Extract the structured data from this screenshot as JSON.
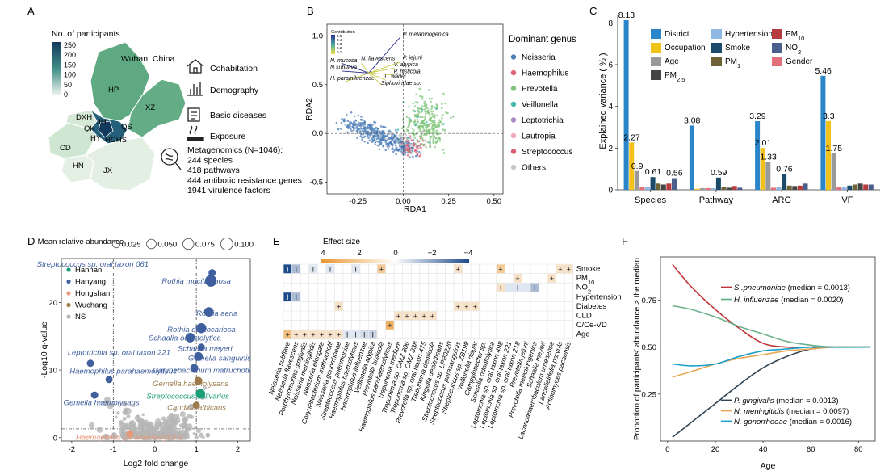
{
  "panels": {
    "a": {
      "letter": "A",
      "legend_title": "No. of participants",
      "legend_ticks": [
        "250",
        "200",
        "150",
        "100",
        "50",
        "0"
      ],
      "city": "Wuhan, China",
      "districts": [
        "HP",
        "XZ",
        "DXH",
        "JH",
        "QK",
        "QS",
        "HY",
        "HCHS",
        "CD",
        "HN",
        "JX"
      ],
      "items": [
        "Cohabitation",
        "Demography",
        "Basic diseases",
        "Exposure"
      ],
      "metagenomics": [
        "Metagenomics (N=1046):",
        "244 species",
        "418 pathways",
        "444 antibotic resistance genes",
        "1941 virulence factors"
      ],
      "colors": {
        "low": "#eef5ee",
        "mid": "#5fa982",
        "high": "#14395e"
      }
    },
    "b": {
      "letter": "B",
      "x_label": "RDA1",
      "y_label": "RDA2",
      "x_ticks": [
        -0.25,
        0.0,
        0.25,
        0.5
      ],
      "x_tick_labels": [
        "-0.25",
        "0.00",
        "0.25",
        "0.50"
      ],
      "y_ticks": [
        -0.5,
        0.0,
        0.5,
        1.0
      ],
      "y_tick_labels": [
        "-0.5",
        "0.0",
        "0.5",
        "1.0"
      ],
      "xlim": [
        -0.42,
        0.55
      ],
      "ylim": [
        -0.62,
        1.12
      ],
      "legend_title": "Dominant genus",
      "genera": [
        "Neisseria",
        "Haemophilus",
        "Prevotella",
        "Veillonella",
        "Leptotrichia",
        "Lautropia",
        "Streptococcus",
        "Others"
      ],
      "genus_colors": [
        "#4f7fb8",
        "#e06377",
        "#7fc47a",
        "#42b8ad",
        "#a48bc2",
        "#f1a9b8",
        "#d95f6e",
        "#c9c9c9"
      ],
      "contribution_title": "Contribution",
      "contribution_ticks": [
        "0.6",
        "0.4",
        "0.3",
        "0.2",
        "0.1"
      ],
      "arrows": [
        {
          "label": "P. melaninogenica",
          "x": -0.02,
          "y": 0.98
        },
        {
          "label": "N. mucosa",
          "x": -0.34,
          "y": 0.72
        },
        {
          "label": "N.subflava",
          "x": -0.34,
          "y": 0.64
        },
        {
          "label": "N. flavescens",
          "x": -0.23,
          "y": 0.72
        },
        {
          "label": "H. parainfluenzae",
          "x": -0.32,
          "y": 0.53
        },
        {
          "label": "V. atypica",
          "x": -0.05,
          "y": 0.67
        },
        {
          "label": "P. histicola",
          "x": -0.05,
          "y": 0.6
        },
        {
          "label": "L. wadei",
          "x": -0.1,
          "y": 0.55
        },
        {
          "label": "Siphoviridae sp.",
          "x": -0.12,
          "y": 0.5
        },
        {
          "label": "P. jejuni",
          "x": -0.02,
          "y": 0.73
        }
      ]
    },
    "c": {
      "letter": "C",
      "y_label": "Explained variance ( % )",
      "y_ticks": [
        0,
        2,
        4,
        6,
        8
      ],
      "ylim": [
        0,
        8.4
      ],
      "categories": [
        "Species",
        "Pathway",
        "ARG",
        "VF"
      ],
      "series": [
        {
          "name": "District",
          "color": "#2a86c9",
          "values": [
            8.13,
            3.08,
            3.29,
            5.46
          ]
        },
        {
          "name": "Occupation",
          "color": "#f2c21b",
          "values": [
            2.27,
            0.05,
            2.01,
            3.3
          ]
        },
        {
          "name": "Age",
          "color": "#9a9a9a",
          "values": [
            0.9,
            0.08,
            1.33,
            1.75
          ]
        },
        {
          "name": "Gender",
          "color": "#e0707a",
          "values": [
            0.12,
            0.08,
            0.1,
            0.12
          ]
        },
        {
          "name": "Hypertension",
          "color": "#8fb8e2",
          "values": [
            0.15,
            0.08,
            0.12,
            0.15
          ]
        },
        {
          "name": "Smoke",
          "color": "#1c4a6a",
          "values": [
            0.61,
            0.59,
            0.76,
            0.2
          ]
        },
        {
          "name": "PM1",
          "color": "#6d6336",
          "values": [
            0.3,
            0.15,
            0.2,
            0.25
          ]
        },
        {
          "name": "PM2.5",
          "color": "#444444",
          "values": [
            0.25,
            0.1,
            0.18,
            0.3
          ]
        },
        {
          "name": "PM10",
          "color": "#b63b3f",
          "values": [
            0.3,
            0.18,
            0.2,
            0.25
          ]
        },
        {
          "name": "NO2",
          "color": "#4a5f8c",
          "values": [
            0.56,
            0.1,
            0.3,
            0.25
          ]
        }
      ],
      "value_labels": [
        {
          "category": "Species",
          "series": "District",
          "text": "8.13"
        },
        {
          "category": "Species",
          "series": "Occupation",
          "text": "2.27"
        },
        {
          "category": "Species",
          "series": "Age",
          "text": "0.9"
        },
        {
          "category": "Species",
          "series": "Smoke",
          "text": "0.61"
        },
        {
          "category": "Species",
          "series": "NO2",
          "text": "0.56"
        },
        {
          "category": "Pathway",
          "series": "District",
          "text": "3.08"
        },
        {
          "category": "Pathway",
          "series": "Smoke",
          "text": "0.59"
        },
        {
          "category": "ARG",
          "series": "District",
          "text": "3.29"
        },
        {
          "category": "ARG",
          "series": "Occupation",
          "text": "2.01"
        },
        {
          "category": "ARG",
          "series": "Age",
          "text": "1.33"
        },
        {
          "category": "ARG",
          "series": "Smoke",
          "text": "0.76"
        },
        {
          "category": "VF",
          "series": "District",
          "text": "5.46"
        },
        {
          "category": "VF",
          "series": "Occupation",
          "text": "3.3"
        },
        {
          "category": "VF",
          "series": "Age",
          "text": "1.75"
        }
      ],
      "legend_order": [
        "District",
        "Hypertension",
        "PM10",
        "Occupation",
        "Smoke",
        "NO2",
        "Age",
        "PM1",
        "Gender",
        "PM2.5"
      ]
    },
    "d": {
      "letter": "D",
      "x_label": "Log2 fold change",
      "y_label": "-Log10 q-value",
      "x_ticks": [
        -2,
        -1,
        0,
        1,
        2
      ],
      "y_ticks": [
        0,
        10,
        20
      ],
      "xlim": [
        -2.25,
        2.3
      ],
      "ylim": [
        -0.5,
        26.5
      ],
      "size_title": "Mean relative abundance",
      "size_ticks": [
        "0.025",
        "0.050",
        "0.075",
        "0.100"
      ],
      "groups": [
        "Hannan",
        "Hanyang",
        "Hongshan",
        "Wuchang",
        "NS"
      ],
      "group_colors": [
        "#1b9e77",
        "#3f5f9e",
        "#e69a7a",
        "#9c7b4c",
        "#b5b5b5"
      ],
      "points": [
        {
          "label": "Streptococcus sp. oral taxon 061",
          "x": 1.38,
          "y": 24.4,
          "group": "Hanyang",
          "size": 0.02
        },
        {
          "label": "Rothia mucilaginosa",
          "x": 1.35,
          "y": 23.2,
          "group": "Hanyang",
          "size": 0.09
        },
        {
          "label": "Rothia aeria",
          "x": 1.3,
          "y": 18.6,
          "group": "Hanyang",
          "size": 0.05
        },
        {
          "label": "Rothia dentocariosa",
          "x": 1.12,
          "y": 16.2,
          "group": "Hanyang",
          "size": 0.06
        },
        {
          "label": "Schaalia odontolytica",
          "x": 0.85,
          "y": 14.8,
          "group": "Hanyang",
          "size": 0.05
        },
        {
          "label": "Schaalia meyeri",
          "x": 1.12,
          "y": 13.4,
          "group": "Hanyang",
          "size": 0.02
        },
        {
          "label": "Gemella sanguinis",
          "x": 1.05,
          "y": 12.0,
          "group": "Hanyang",
          "size": 0.04
        },
        {
          "label": "Corynebacterium matruchotii",
          "x": 0.95,
          "y": 10.3,
          "group": "Hanyang",
          "size": 0.03
        },
        {
          "label": "Gemella haemolysans",
          "x": 1.05,
          "y": 8.4,
          "group": "Wuchang",
          "size": 0.03
        },
        {
          "label": "Streptococcus salivarius",
          "x": 1.1,
          "y": 6.5,
          "group": "Hannan",
          "size": 0.05
        },
        {
          "label": "Candida albicans",
          "x": 1.0,
          "y": 4.8,
          "group": "Wuchang",
          "size": 0.02
        },
        {
          "label": "Leptotrichia sp. oral taxon 221",
          "x": -1.55,
          "y": 11.0,
          "group": "Hanyang",
          "size": 0.02
        },
        {
          "label": "Haemophilus parahaemolyticus",
          "x": -1.1,
          "y": 8.6,
          "group": "Hanyang",
          "size": 0.02
        },
        {
          "label": "Gemella haemolysans",
          "x": -1.45,
          "y": 6.3,
          "group": "Hanyang",
          "size": 0.02
        },
        {
          "label": "Haemophilus parahaemolyticus",
          "x": -0.6,
          "y": 0.6,
          "group": "Hongshan",
          "size": 0.02
        }
      ]
    },
    "e": {
      "letter": "E",
      "legend_title": "Effect size",
      "legend_ticks": [
        "4",
        "2",
        "0",
        "−2",
        "−4"
      ],
      "rows": [
        "Smoke",
        "PM10",
        "NO2",
        "Hypertension",
        "Diabetes",
        "CLD",
        "C/Ce-VD",
        "Age"
      ],
      "row_markers": [
        "+",
        "-",
        "",
        "+",
        "",
        "",
        "",
        "+"
      ],
      "columns": [
        "Neisseria subflava",
        "Neisseria flavescens",
        "Porphyromonas gingivalis",
        "Neisseria meningitidis",
        "Neisseria elongata",
        "Corynebacterium matruchotii",
        "Neisseria gonorrhoeae",
        "Streptococcus pneumoniae",
        "Haemophilus haemolyticus",
        "Haemophilus influenzae",
        "Veillonella atypica",
        "Prevotella histicola",
        "Haemophilus parahaemolyticus",
        "Treponema medium",
        "Treponema sp. OMZ 806",
        "Treponema sp. OMZ 838",
        "Prevotella sp. oral taxon 475",
        "Treponema denticola",
        "Kingella denitrificans",
        "Streptococcus sp. LPB0220",
        "Streptococcus parasanguinis",
        "Streptococcus sp. ZB199",
        "Veillonella dispar",
        "Campylobacter sp.",
        "Schaalia odontolytica",
        "Leptotrichia sp. oral taxon 498",
        "Leptotrichia sp. oral taxon 221",
        "Leptotrichia sp. oral taxon 218",
        "Prevotella jejuni",
        "Prevotella melaninogenica",
        "Schaalia meyeri",
        "Lachnoanaerobaculum umeaense",
        "Lancefieldella parvula",
        "Actinomyces pacaensis"
      ],
      "cells": [
        {
          "row": 0,
          "col": 0,
          "effect": -4.0,
          "mark": "I"
        },
        {
          "row": 0,
          "col": 1,
          "effect": -1.5,
          "mark": "I"
        },
        {
          "row": 0,
          "col": 3,
          "effect": 0,
          "mark": "I"
        },
        {
          "row": 0,
          "col": 5,
          "effect": 0,
          "mark": "I"
        },
        {
          "row": 0,
          "col": 8,
          "effect": 0,
          "mark": "I"
        },
        {
          "row": 0,
          "col": 11,
          "effect": 2.0,
          "mark": "+"
        },
        {
          "row": 0,
          "col": 20,
          "effect": 0,
          "mark": "+"
        },
        {
          "row": 0,
          "col": 25,
          "effect": 2.0,
          "mark": "+"
        },
        {
          "row": 0,
          "col": 32,
          "effect": 0,
          "mark": "+"
        },
        {
          "row": 0,
          "col": 33,
          "effect": 0,
          "mark": "+"
        },
        {
          "row": 1,
          "col": 27,
          "effect": 0,
          "mark": "+"
        },
        {
          "row": 1,
          "col": 31,
          "effect": 0,
          "mark": "+"
        },
        {
          "row": 2,
          "col": 25,
          "effect": 0,
          "mark": "+"
        },
        {
          "row": 2,
          "col": 26,
          "effect": 0,
          "mark": "I"
        },
        {
          "row": 2,
          "col": 27,
          "effect": 0,
          "mark": "I"
        },
        {
          "row": 2,
          "col": 28,
          "effect": 0,
          "mark": "I"
        },
        {
          "row": 2,
          "col": 29,
          "effect": -1.5,
          "mark": "I"
        },
        {
          "row": 3,
          "col": 0,
          "effect": -4.0,
          "mark": "I"
        },
        {
          "row": 3,
          "col": 1,
          "effect": -1.5,
          "mark": "I"
        },
        {
          "row": 4,
          "col": 6,
          "effect": 0,
          "mark": "+"
        },
        {
          "row": 4,
          "col": 20,
          "effect": 0,
          "mark": "+"
        },
        {
          "row": 4,
          "col": 21,
          "effect": 0,
          "mark": "+"
        },
        {
          "row": 4,
          "col": 22,
          "effect": 0,
          "mark": "+"
        },
        {
          "row": 5,
          "col": 13,
          "effect": 0,
          "mark": "+"
        },
        {
          "row": 5,
          "col": 14,
          "effect": 0,
          "mark": "+"
        },
        {
          "row": 5,
          "col": 15,
          "effect": 0,
          "mark": "+"
        },
        {
          "row": 5,
          "col": 16,
          "effect": 0,
          "mark": "+"
        },
        {
          "row": 5,
          "col": 17,
          "effect": 0,
          "mark": "+"
        },
        {
          "row": 6,
          "col": 12,
          "effect": 3.0,
          "mark": "+"
        },
        {
          "row": 7,
          "col": 0,
          "effect": 2.5,
          "mark": "+"
        },
        {
          "row": 7,
          "col": 1,
          "effect": 0,
          "mark": "+"
        },
        {
          "row": 7,
          "col": 2,
          "effect": 0,
          "mark": "+"
        },
        {
          "row": 7,
          "col": 3,
          "effect": 0,
          "mark": "+"
        },
        {
          "row": 7,
          "col": 4,
          "effect": 0,
          "mark": "+"
        },
        {
          "row": 7,
          "col": 5,
          "effect": 0,
          "mark": "+"
        },
        {
          "row": 7,
          "col": 6,
          "effect": 0,
          "mark": "+"
        },
        {
          "row": 7,
          "col": 7,
          "effect": 0,
          "mark": "I"
        },
        {
          "row": 7,
          "col": 8,
          "effect": 0,
          "mark": "I"
        },
        {
          "row": 7,
          "col": 9,
          "effect": -0.8,
          "mark": "I"
        },
        {
          "row": 7,
          "col": 10,
          "effect": -1.0,
          "mark": "I"
        }
      ]
    },
    "f": {
      "letter": "F",
      "x_label": "Age",
      "y_label": "Proportion of participants' abundance > the median",
      "x_ticks": [
        0,
        20,
        40,
        60,
        80
      ],
      "y_ticks": [
        0.25,
        0.5,
        0.75
      ],
      "y_tick_labels": [
        "0.25",
        "0.50",
        "0.75"
      ],
      "xlim": [
        -3,
        87
      ],
      "ylim": [
        0.0,
        0.98
      ],
      "series": [
        {
          "species": "S .pneumoniae",
          "median": "(median = 0.0013)",
          "color": "#c1383a",
          "x": [
            2,
            10,
            20,
            30,
            40,
            50,
            60,
            70,
            80,
            85
          ],
          "y": [
            0.94,
            0.82,
            0.7,
            0.6,
            0.52,
            0.5,
            0.5,
            0.5,
            0.5,
            0.5
          ]
        },
        {
          "species": "H. influenzae",
          "median": "(median = 0.0020)",
          "color": "#6cb08c",
          "x": [
            2,
            10,
            20,
            30,
            40,
            50,
            60,
            70,
            80,
            85
          ],
          "y": [
            0.72,
            0.7,
            0.66,
            0.61,
            0.57,
            0.53,
            0.51,
            0.5,
            0.5,
            0.5
          ]
        },
        {
          "species": "P. gingivalis",
          "median": "(median = 0.0013)",
          "color": "#2f4555",
          "x": [
            2,
            10,
            20,
            30,
            40,
            50,
            60,
            70,
            80,
            85
          ],
          "y": [
            0.02,
            0.1,
            0.2,
            0.3,
            0.39,
            0.45,
            0.49,
            0.5,
            0.5,
            0.5
          ]
        },
        {
          "species": "N. meningitidis",
          "median": "(median = 0.0097)",
          "color": "#e8a653",
          "x": [
            2,
            10,
            20,
            30,
            40,
            50,
            60,
            70,
            80,
            85
          ],
          "y": [
            0.34,
            0.37,
            0.41,
            0.44,
            0.46,
            0.48,
            0.49,
            0.5,
            0.5,
            0.5
          ]
        },
        {
          "species": "N. gonorrhoeae",
          "median": "(median = 0.0016)",
          "color": "#1a9ec9",
          "x": [
            2,
            10,
            20,
            30,
            40,
            50,
            60,
            70,
            80,
            85
          ],
          "y": [
            0.41,
            0.4,
            0.41,
            0.45,
            0.48,
            0.49,
            0.5,
            0.5,
            0.5,
            0.5
          ]
        }
      ]
    }
  }
}
